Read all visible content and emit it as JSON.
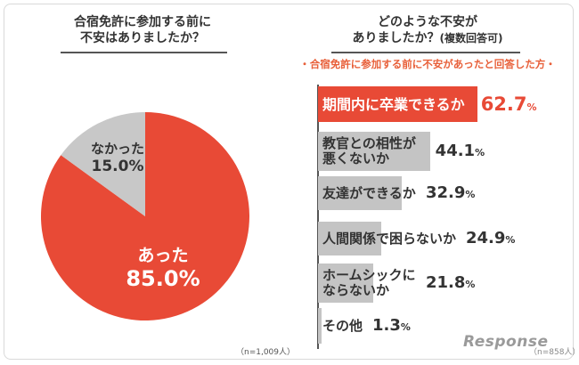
{
  "left_chart": {
    "title_line1": "合宿免許に参加する前に",
    "title_line2": "不安はありましたか？",
    "note": "（n=1,009人）",
    "chart_data": {
      "type": "pie",
      "slices": [
        {
          "label": "あった",
          "value": 85.0,
          "value_text": "85.0%",
          "color": "#e84a36"
        },
        {
          "label": "なかった",
          "value": 15.0,
          "value_text": "15.0%",
          "color": "#c8c8c8"
        }
      ]
    }
  },
  "right_chart": {
    "title_line1": "どのような不安が",
    "title_line2": "ありましたか？",
    "title_note": "(複数回答可)",
    "subtitle": "・合宿免許に参加する前に不安があったと回答した方・",
    "note": "（n=858人）",
    "chart_data": {
      "type": "bar",
      "orientation": "horizontal",
      "xlim": [
        0,
        100
      ],
      "categories": [
        "期間内に卒業できるか",
        "教官との相性が悪くないか",
        "友達ができるか",
        "人間関係で困らないか",
        "ホームシックにならないか",
        "その他"
      ],
      "labels_display": [
        [
          "期間内に卒業できるか"
        ],
        [
          "教官との相性が",
          "悪くないか"
        ],
        [
          "友達ができるか"
        ],
        [
          "人間関係で困らないか"
        ],
        [
          "ホームシックに",
          "ならないか"
        ],
        [
          "その他"
        ]
      ],
      "values": [
        62.7,
        44.1,
        32.9,
        24.9,
        21.8,
        1.3
      ],
      "value_text": [
        "62.7",
        "44.1",
        "32.9",
        "24.9",
        "21.8",
        "1.3"
      ],
      "unit": "%",
      "highlight_color": "#e84a36",
      "bar_color": "#c4c4c4"
    }
  },
  "watermark": "Response"
}
